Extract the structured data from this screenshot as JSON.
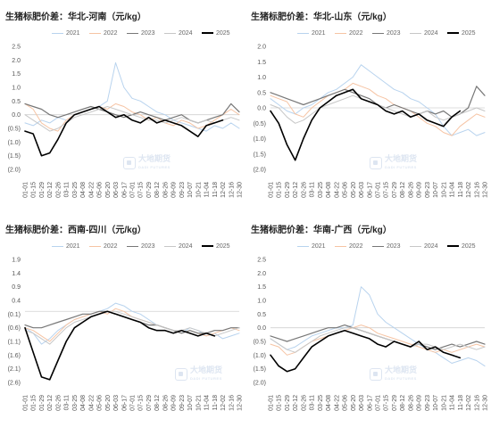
{
  "watermark": {
    "name": "大地期货",
    "sub": "DADI FUTURES"
  },
  "chart_data": [
    {
      "type": "line",
      "title": "生猪标肥价差：华北-河南（元/kg）",
      "y_ticks": [
        "2.5",
        "2.0",
        "1.5",
        "1.0",
        "0.5",
        "0.0",
        "(0.5)",
        "(1.0)",
        "(1.5)",
        "(2.0)"
      ],
      "ylim": [
        -2.0,
        2.5
      ],
      "x_ticks": [
        "01-01",
        "01-15",
        "01-29",
        "02-12",
        "02-26",
        "03-11",
        "03-25",
        "04-08",
        "04-22",
        "05-06",
        "05-20",
        "06-03",
        "06-17",
        "07-01",
        "07-15",
        "07-29",
        "08-12",
        "08-26",
        "09-09",
        "09-23",
        "10-07",
        "10-21",
        "11-04",
        "11-18",
        "12-02",
        "12-16",
        "12-30"
      ],
      "series": [
        {
          "name": "2021",
          "color": "#b8d3ee",
          "width": 1,
          "values": [
            -0.3,
            -0.4,
            -0.2,
            -0.3,
            -0.1,
            -0.2,
            0.0,
            0.1,
            0.2,
            0.3,
            0.5,
            1.9,
            1.0,
            0.6,
            0.5,
            0.3,
            0.1,
            0.0,
            -0.2,
            -0.3,
            -0.4,
            -0.5,
            -0.6,
            -0.4,
            -0.5,
            -0.3,
            -0.5
          ]
        },
        {
          "name": "2022",
          "color": "#f6c4a4",
          "width": 1,
          "values": [
            0.4,
            0.2,
            -0.3,
            -0.5,
            -0.6,
            -0.2,
            0.0,
            0.1,
            0.2,
            0.3,
            0.2,
            0.4,
            0.3,
            0.1,
            0.0,
            -0.2,
            -0.1,
            -0.3,
            -0.4,
            -0.2,
            -0.3,
            -0.5,
            -0.4,
            -0.2,
            0.0,
            0.2,
            0.0
          ]
        },
        {
          "name": "2023",
          "color": "#777777",
          "width": 1.2,
          "values": [
            0.4,
            0.3,
            0.2,
            0.0,
            -0.1,
            0.0,
            0.1,
            0.2,
            0.3,
            0.2,
            0.1,
            0.0,
            -0.1,
            0.0,
            0.1,
            0.0,
            -0.1,
            -0.2,
            -0.1,
            0.0,
            -0.2,
            -0.3,
            -0.2,
            -0.1,
            0.0,
            0.4,
            0.1
          ]
        },
        {
          "name": "2024",
          "color": "#c7c7c7",
          "width": 1,
          "values": [
            0.0,
            -0.2,
            -0.4,
            -0.6,
            -0.5,
            -0.3,
            -0.1,
            0.0,
            0.1,
            0.2,
            0.3,
            0.2,
            0.1,
            0.0,
            -0.1,
            -0.2,
            -0.2,
            -0.3,
            -0.2,
            -0.1,
            -0.2,
            -0.3,
            -0.2,
            -0.3,
            -0.2,
            -0.1,
            -0.2
          ]
        },
        {
          "name": "2025",
          "color": "#000000",
          "width": 1.6,
          "values": [
            -0.6,
            -0.7,
            -1.5,
            -1.4,
            -0.9,
            -0.3,
            0.0,
            0.1,
            0.2,
            0.3,
            0.1,
            -0.1,
            0.0,
            -0.2,
            -0.3,
            -0.1,
            -0.3,
            -0.2,
            -0.3,
            -0.4,
            -0.6,
            -0.8,
            -0.4,
            -0.3,
            -0.2,
            null,
            null
          ]
        }
      ]
    },
    {
      "type": "line",
      "title": "生猪标肥价差：华北-山东（元/kg）",
      "y_ticks": [
        "2.0",
        "1.5",
        "1.0",
        "0.5",
        "0.0",
        "(0.5)",
        "(1.0)",
        "(1.5)",
        "(2.0)"
      ],
      "ylim": [
        -2.0,
        2.0
      ],
      "x_ticks": [
        "01-01",
        "01-15",
        "01-29",
        "02-12",
        "02-26",
        "03-11",
        "03-25",
        "04-08",
        "04-22",
        "05-06",
        "05-20",
        "06-03",
        "06-17",
        "07-01",
        "07-15",
        "07-29",
        "08-12",
        "08-26",
        "09-09",
        "09-23",
        "10-07",
        "10-21",
        "11-04",
        "11-18",
        "12-02",
        "12-16",
        "12-30"
      ],
      "series": [
        {
          "name": "2021",
          "color": "#b8d3ee",
          "width": 1,
          "values": [
            0.3,
            0.1,
            -0.1,
            -0.2,
            0.0,
            0.1,
            0.3,
            0.5,
            0.6,
            0.8,
            1.0,
            1.4,
            1.2,
            1.0,
            0.8,
            0.6,
            0.5,
            0.3,
            0.2,
            0.0,
            -0.2,
            -0.6,
            -0.9,
            -0.8,
            -0.7,
            -0.9,
            -0.8
          ]
        },
        {
          "name": "2022",
          "color": "#f6c4a4",
          "width": 1,
          "values": [
            0.4,
            0.3,
            0.2,
            -0.2,
            -0.3,
            0.0,
            0.2,
            0.4,
            0.5,
            0.6,
            0.8,
            0.7,
            0.6,
            0.4,
            0.3,
            0.1,
            0.0,
            -0.1,
            -0.3,
            -0.5,
            -0.6,
            -0.8,
            -0.9,
            -0.6,
            -0.4,
            -0.2,
            -0.3
          ]
        },
        {
          "name": "2023",
          "color": "#777777",
          "width": 1.2,
          "values": [
            0.5,
            0.4,
            0.3,
            0.2,
            0.1,
            0.2,
            0.3,
            0.4,
            0.5,
            0.6,
            0.5,
            0.4,
            0.3,
            0.1,
            0.0,
            0.1,
            0.0,
            -0.1,
            -0.2,
            -0.1,
            -0.2,
            -0.1,
            -0.3,
            -0.2,
            0.0,
            0.7,
            0.4
          ]
        },
        {
          "name": "2024",
          "color": "#c7c7c7",
          "width": 1,
          "values": [
            0.1,
            0.0,
            -0.3,
            -0.5,
            -0.4,
            -0.2,
            0.0,
            0.1,
            0.2,
            0.3,
            0.4,
            0.3,
            0.2,
            0.1,
            0.0,
            -0.1,
            -0.2,
            -0.3,
            -0.2,
            -0.1,
            -0.3,
            -0.4,
            -0.3,
            -0.2,
            -0.1,
            0.0,
            -0.1
          ]
        },
        {
          "name": "2025",
          "color": "#000000",
          "width": 1.6,
          "values": [
            -0.1,
            -0.5,
            -1.2,
            -1.7,
            -1.0,
            -0.4,
            0.0,
            0.2,
            0.4,
            0.5,
            0.6,
            0.3,
            0.2,
            0.1,
            -0.1,
            -0.2,
            -0.1,
            -0.3,
            -0.2,
            -0.4,
            -0.5,
            -0.6,
            -0.3,
            -0.1,
            null,
            null,
            null
          ]
        }
      ]
    },
    {
      "type": "line",
      "title": "生猪标肥价差：西南-四川（元/kg）",
      "y_ticks": [
        "1.9",
        "1.4",
        "0.9",
        "0.4",
        "(0.1)",
        "(0.6)",
        "(1.1)",
        "(1.6)",
        "(2.1)",
        "(2.6)"
      ],
      "ylim": [
        -2.6,
        1.9
      ],
      "x_ticks": [
        "01-01",
        "01-15",
        "01-29",
        "02-12",
        "02-26",
        "03-11",
        "03-25",
        "04-08",
        "04-22",
        "05-06",
        "05-20",
        "06-03",
        "06-17",
        "07-01",
        "07-15",
        "07-29",
        "08-12",
        "08-26",
        "09-09",
        "09-23",
        "10-07",
        "10-21",
        "11-04",
        "11-18",
        "12-02",
        "12-16",
        "12-30"
      ],
      "series": [
        {
          "name": "2021",
          "color": "#b8d3ee",
          "width": 1,
          "values": [
            -0.6,
            -0.8,
            -1.2,
            -1.0,
            -0.7,
            -0.5,
            -0.3,
            -0.2,
            -0.1,
            0.0,
            0.1,
            0.3,
            0.2,
            0.0,
            -0.1,
            -0.3,
            -0.5,
            -0.6,
            -0.7,
            -0.8,
            -0.6,
            -0.7,
            -0.9,
            -0.8,
            -1.0,
            -0.9,
            -0.8
          ]
        },
        {
          "name": "2022",
          "color": "#f6c4a4",
          "width": 1,
          "values": [
            -0.6,
            -0.7,
            -0.9,
            -1.1,
            -0.8,
            -0.5,
            -0.3,
            -0.2,
            -0.1,
            0.0,
            -0.1,
            0.1,
            0.0,
            -0.2,
            -0.3,
            -0.4,
            -0.5,
            -0.6,
            -0.7,
            -0.8,
            -0.7,
            -0.8,
            -0.9,
            -0.8,
            -0.7,
            -0.6,
            -0.7
          ]
        },
        {
          "name": "2023",
          "color": "#777777",
          "width": 1.2,
          "values": [
            -0.5,
            -0.6,
            -0.6,
            -0.5,
            -0.4,
            -0.3,
            -0.2,
            -0.1,
            -0.1,
            0.0,
            0.0,
            -0.1,
            -0.2,
            -0.3,
            -0.4,
            -0.5,
            -0.5,
            -0.6,
            -0.7,
            -0.8,
            -0.7,
            -0.8,
            -0.8,
            -0.7,
            -0.7,
            -0.6,
            -0.6
          ]
        },
        {
          "name": "2024",
          "color": "#c7c7c7",
          "width": 1,
          "values": [
            -0.7,
            -0.8,
            -1.0,
            -1.2,
            -0.9,
            -0.6,
            -0.4,
            -0.3,
            -0.2,
            -0.1,
            0.0,
            0.0,
            -0.1,
            -0.2,
            -0.3,
            -0.4,
            -0.5,
            -0.6,
            -0.7,
            -0.7,
            -0.6,
            -0.7,
            -0.8,
            -0.9,
            -0.8,
            -0.7,
            -0.6
          ]
        },
        {
          "name": "2025",
          "color": "#000000",
          "width": 1.6,
          "values": [
            -0.6,
            -1.5,
            -2.4,
            -2.5,
            -1.8,
            -1.1,
            -0.6,
            -0.4,
            -0.2,
            -0.1,
            0.0,
            -0.1,
            -0.2,
            -0.3,
            -0.4,
            -0.6,
            -0.7,
            -0.7,
            -0.8,
            -0.7,
            -0.8,
            -0.9,
            -0.8,
            -0.9,
            null,
            null,
            null
          ]
        }
      ]
    },
    {
      "type": "line",
      "title": "生猪标肥价差：华南-广西（元/kg）",
      "y_ticks": [
        "2.5",
        "2.0",
        "1.5",
        "1.0",
        "0.5",
        "0.0",
        "(0.5)",
        "(1.0)",
        "(1.5)",
        "(2.0)"
      ],
      "ylim": [
        -2.0,
        2.5
      ],
      "x_ticks": [
        "01-01",
        "01-15",
        "01-29",
        "02-12",
        "02-26",
        "03-11",
        "03-25",
        "04-08",
        "04-22",
        "05-06",
        "05-20",
        "06-03",
        "06-17",
        "07-01",
        "07-15",
        "07-29",
        "08-12",
        "08-26",
        "09-09",
        "09-23",
        "10-07",
        "10-21",
        "11-04",
        "11-18",
        "12-02",
        "12-16",
        "12-30"
      ],
      "series": [
        {
          "name": "2021",
          "color": "#b8d3ee",
          "width": 1,
          "values": [
            -0.4,
            -0.6,
            -0.8,
            -0.7,
            -0.5,
            -0.3,
            -0.2,
            -0.1,
            0.0,
            0.0,
            0.1,
            1.5,
            1.2,
            0.5,
            0.2,
            0.0,
            -0.2,
            -0.4,
            -0.6,
            -0.8,
            -0.9,
            -1.1,
            -1.3,
            -1.2,
            -1.1,
            -1.2,
            -1.4
          ]
        },
        {
          "name": "2022",
          "color": "#f6c4a4",
          "width": 1,
          "values": [
            -0.6,
            -0.7,
            -1.0,
            -0.9,
            -0.7,
            -0.5,
            -0.4,
            -0.3,
            -0.2,
            -0.1,
            0.0,
            0.1,
            0.0,
            -0.2,
            -0.3,
            -0.4,
            -0.5,
            -0.6,
            -0.7,
            -0.8,
            -0.9,
            -0.8,
            -0.9,
            -0.8,
            -0.7,
            -0.6,
            -0.7
          ]
        },
        {
          "name": "2023",
          "color": "#777777",
          "width": 1.2,
          "values": [
            -0.3,
            -0.4,
            -0.5,
            -0.4,
            -0.3,
            -0.2,
            -0.1,
            0.0,
            0.0,
            0.1,
            0.0,
            -0.1,
            -0.2,
            -0.3,
            -0.4,
            -0.5,
            -0.6,
            -0.7,
            -0.6,
            -0.7,
            -0.8,
            -0.7,
            -0.6,
            -0.7,
            -0.6,
            -0.5,
            -0.6
          ]
        },
        {
          "name": "2024",
          "color": "#c7c7c7",
          "width": 1,
          "values": [
            -0.4,
            -0.6,
            -0.8,
            -0.9,
            -0.7,
            -0.5,
            -0.3,
            -0.2,
            -0.1,
            0.0,
            0.0,
            -0.1,
            -0.2,
            -0.3,
            -0.4,
            -0.5,
            -0.6,
            -0.7,
            -0.6,
            -0.6,
            -0.7,
            -0.8,
            -0.7,
            -0.6,
            -0.7,
            -0.8,
            -0.7
          ]
        },
        {
          "name": "2025",
          "color": "#000000",
          "width": 1.6,
          "values": [
            -1.0,
            -1.4,
            -1.6,
            -1.5,
            -1.1,
            -0.7,
            -0.5,
            -0.3,
            -0.2,
            -0.1,
            -0.2,
            -0.3,
            -0.4,
            -0.6,
            -0.7,
            -0.5,
            -0.6,
            -0.7,
            -0.5,
            -0.8,
            -0.7,
            -0.9,
            -1.0,
            -1.1,
            null,
            null,
            null
          ]
        }
      ]
    }
  ]
}
